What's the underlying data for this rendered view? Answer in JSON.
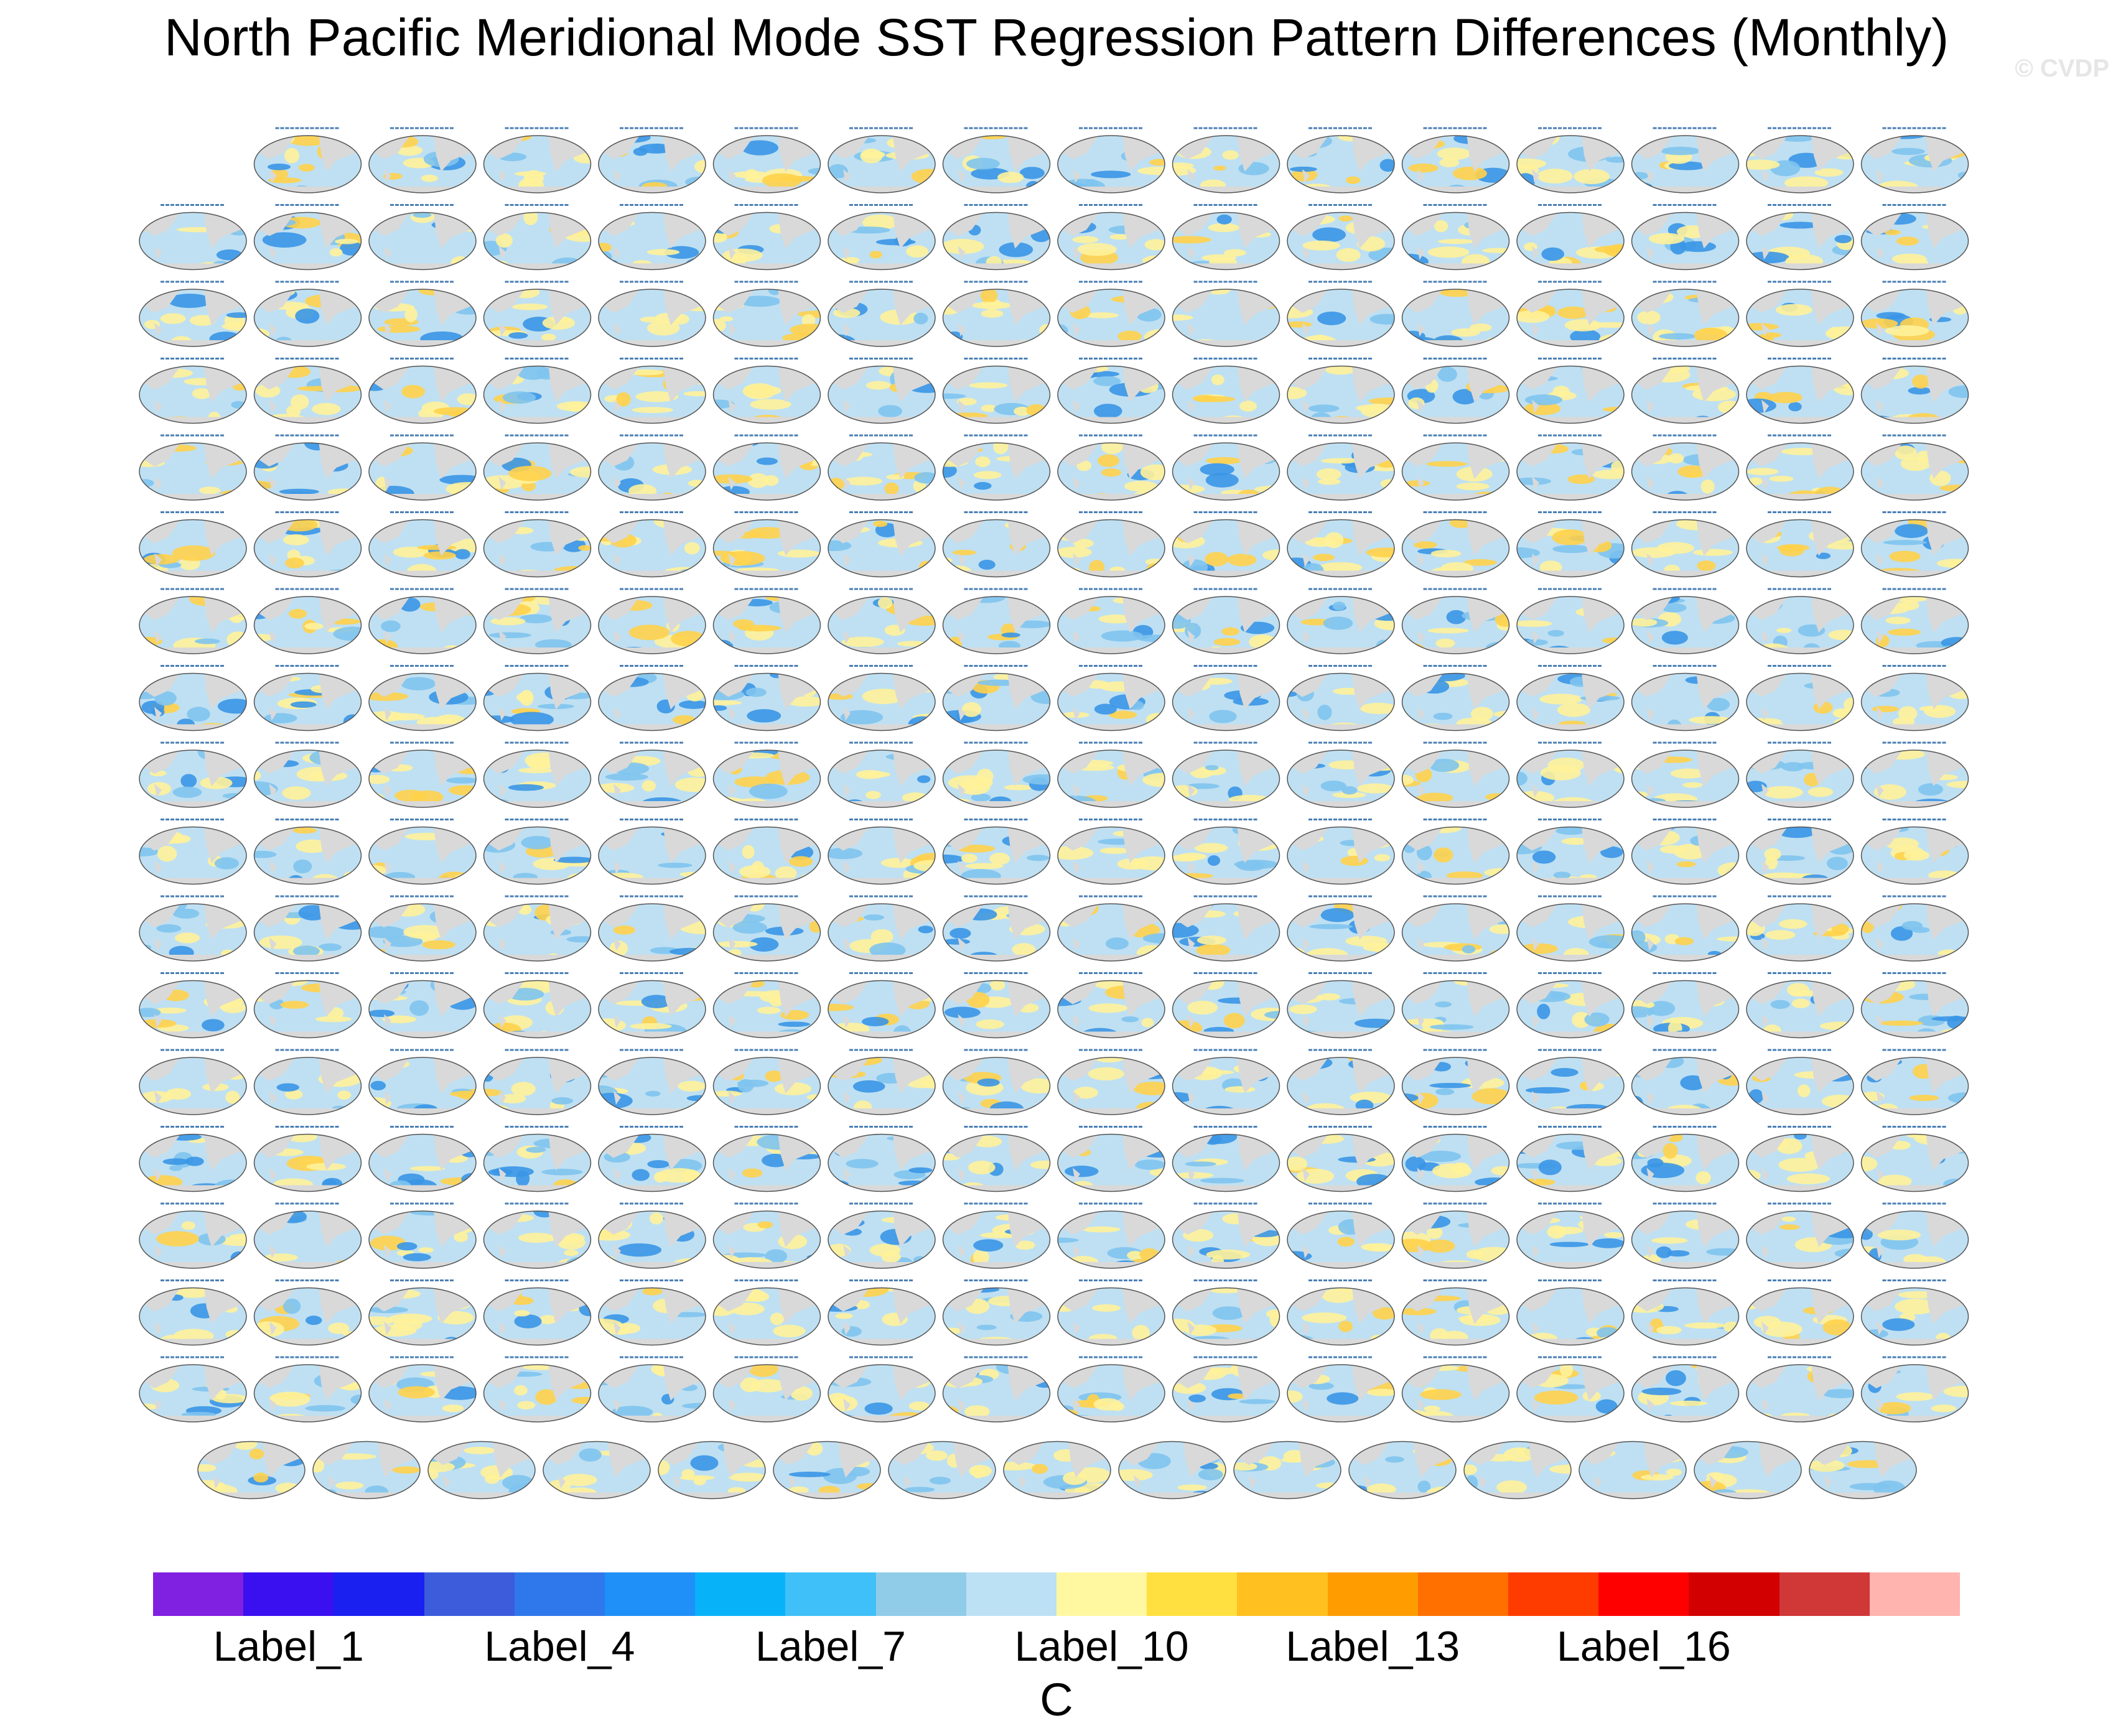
{
  "title": "North Pacific Meridional Mode SST Regression Pattern Differences (Monthly)",
  "watermark": "© CVDP",
  "colorbar": {
    "colors": [
      "#8020e0",
      "#3a10f0",
      "#1a20f0",
      "#3c5cdc",
      "#2e78ec",
      "#1e90f8",
      "#08b2f8",
      "#40c0f8",
      "#90cce8",
      "#bce0f4",
      "#fff8a0",
      "#ffe040",
      "#ffc020",
      "#ff9c00",
      "#ff7000",
      "#ff3c00",
      "#ff0000",
      "#d20000",
      "#d03838",
      "#ffb4b0"
    ],
    "labels": [
      "Label_1",
      "Label_4",
      "Label_7",
      "Label_10",
      "Label_13",
      "Label_16"
    ],
    "unit": "C"
  },
  "panel_grid": {
    "row_counts": [
      15,
      16,
      16,
      16,
      16,
      16,
      16,
      16,
      16,
      16,
      16,
      16,
      16,
      16,
      16,
      16,
      16,
      15
    ],
    "palette": {
      "ocean": "#bfe0f2",
      "warm": "#fff29a",
      "warm_strong": "#ffd24a",
      "cool": "#80c4ee",
      "cool_strong": "#3a96e6",
      "land": "#d9d9d9",
      "header_text": "#4a7fb5"
    }
  }
}
